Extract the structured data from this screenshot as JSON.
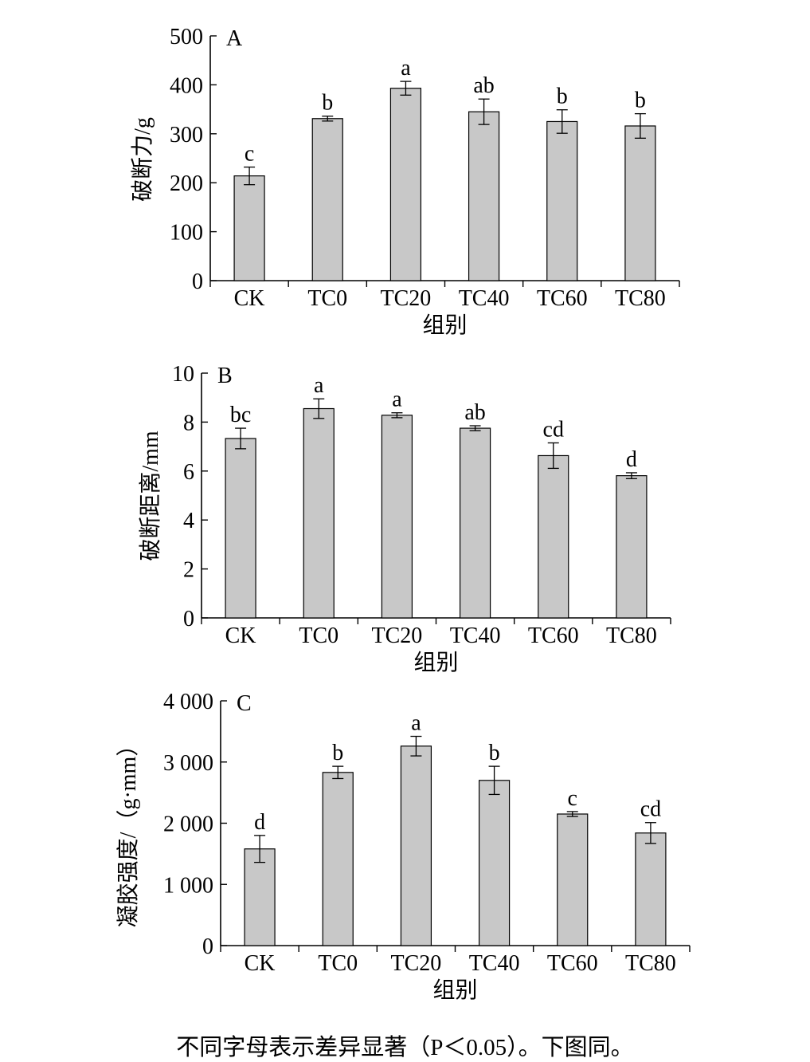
{
  "footnote": "不同字母表示差异显著（P＜0.05）。下图同。",
  "colors": {
    "bar_fill": "#c8c8c8",
    "bar_stroke": "#000000",
    "axis": "#000000"
  },
  "chart_data": [
    {
      "type": "bar",
      "panel": "A",
      "xlabel": "组别",
      "ylabel": "破断力/g",
      "ylim": [
        0,
        500
      ],
      "yticks": [
        0,
        100,
        200,
        300,
        400,
        500
      ],
      "ytick_labels": [
        "0",
        "100",
        "200",
        "300",
        "400",
        "500"
      ],
      "categories": [
        "CK",
        "TC0",
        "TC20",
        "TC40",
        "TC60",
        "TC80"
      ],
      "values": [
        214,
        331,
        393,
        345,
        325,
        316
      ],
      "errors": [
        18,
        5,
        14,
        26,
        24,
        25
      ],
      "letters": [
        "c",
        "b",
        "a",
        "ab",
        "b",
        "b"
      ],
      "grid": false
    },
    {
      "type": "bar",
      "panel": "B",
      "xlabel": "组别",
      "ylabel": "破断距离/mm",
      "ylim": [
        0,
        10
      ],
      "yticks": [
        0,
        2,
        4,
        6,
        8,
        10
      ],
      "ytick_labels": [
        "0",
        "2",
        "4",
        "6",
        "8",
        "10"
      ],
      "categories": [
        "CK",
        "TC0",
        "TC20",
        "TC40",
        "TC60",
        "TC80"
      ],
      "values": [
        7.33,
        8.55,
        8.28,
        7.75,
        6.63,
        5.81
      ],
      "errors": [
        0.42,
        0.4,
        0.1,
        0.1,
        0.52,
        0.12
      ],
      "letters": [
        "bc",
        "a",
        "a",
        "ab",
        "cd",
        "d"
      ],
      "grid": false
    },
    {
      "type": "bar",
      "panel": "C",
      "xlabel": "组别",
      "ylabel": "凝胶强度/（g·mm）",
      "ylim": [
        0,
        4000
      ],
      "yticks": [
        0,
        1000,
        2000,
        3000,
        4000
      ],
      "ytick_labels": [
        "0",
        "1 000",
        "2 000",
        "3 000",
        "4 000"
      ],
      "categories": [
        "CK",
        "TC0",
        "TC20",
        "TC40",
        "TC60",
        "TC80"
      ],
      "values": [
        1580,
        2830,
        3260,
        2700,
        2150,
        1840
      ],
      "errors": [
        220,
        100,
        160,
        230,
        40,
        170
      ],
      "letters": [
        "d",
        "b",
        "a",
        "b",
        "c",
        "cd"
      ],
      "grid": false
    }
  ]
}
